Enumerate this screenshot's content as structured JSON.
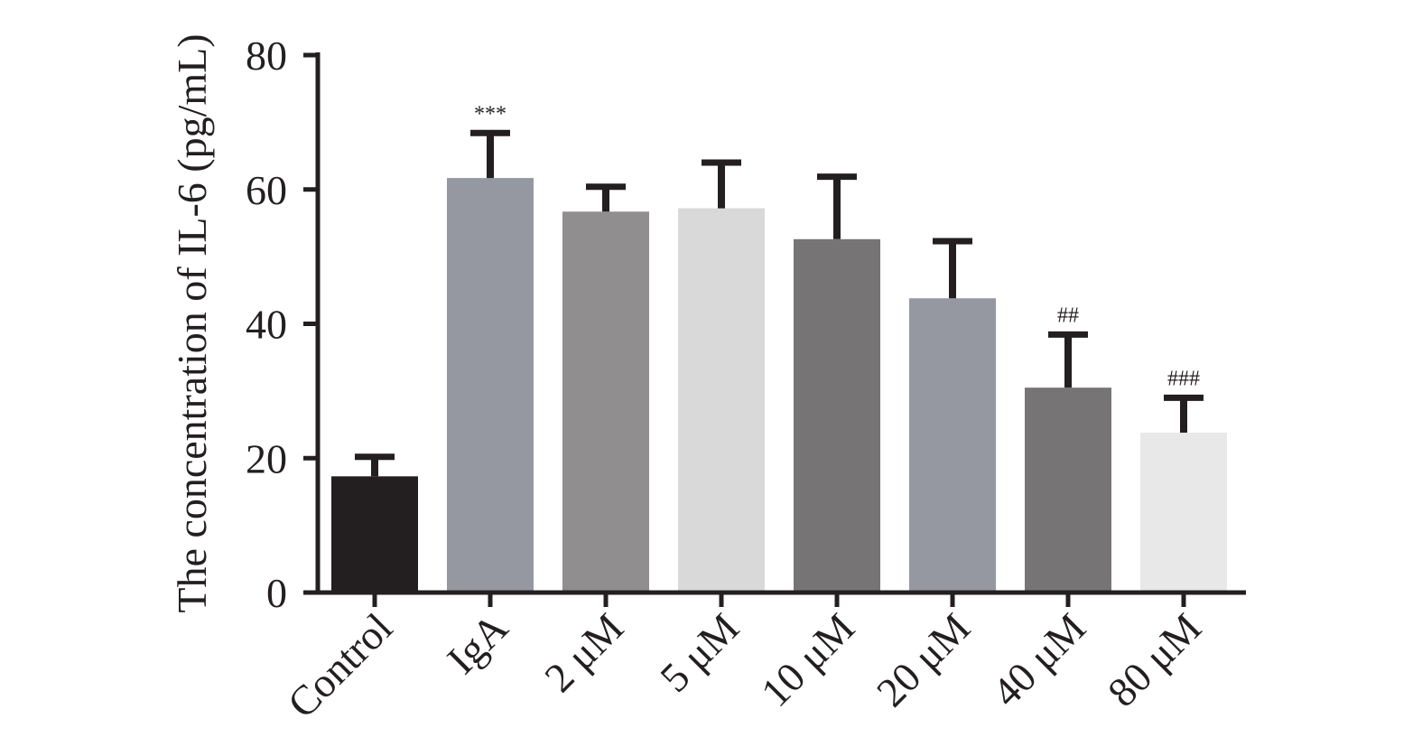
{
  "chart_data": {
    "type": "bar",
    "title": "",
    "xlabel": "",
    "ylabel": "The concentration of IL-6 (pg/mL)",
    "ylim": [
      0,
      80
    ],
    "yticks": [
      0,
      20,
      40,
      60,
      80
    ],
    "categories": [
      "Control",
      "IgA",
      "2 μM",
      "5 μM",
      "10 μM",
      "20 μM",
      "40 μM",
      "80 μM"
    ],
    "values": [
      17.3,
      61.7,
      56.7,
      57.2,
      52.6,
      43.8,
      30.5,
      23.8
    ],
    "error_upper": [
      20.2,
      68.4,
      60.4,
      64.0,
      61.9,
      52.3,
      38.4,
      29.0
    ],
    "colors": [
      "#231f20",
      "#9598a1",
      "#908e8f",
      "#d9d9d9",
      "#767474",
      "#9598a1",
      "#767474",
      "#e8e8e8"
    ],
    "annotations": [
      "",
      "***",
      "",
      "",
      "",
      "",
      "##",
      "###"
    ],
    "grid": false
  }
}
